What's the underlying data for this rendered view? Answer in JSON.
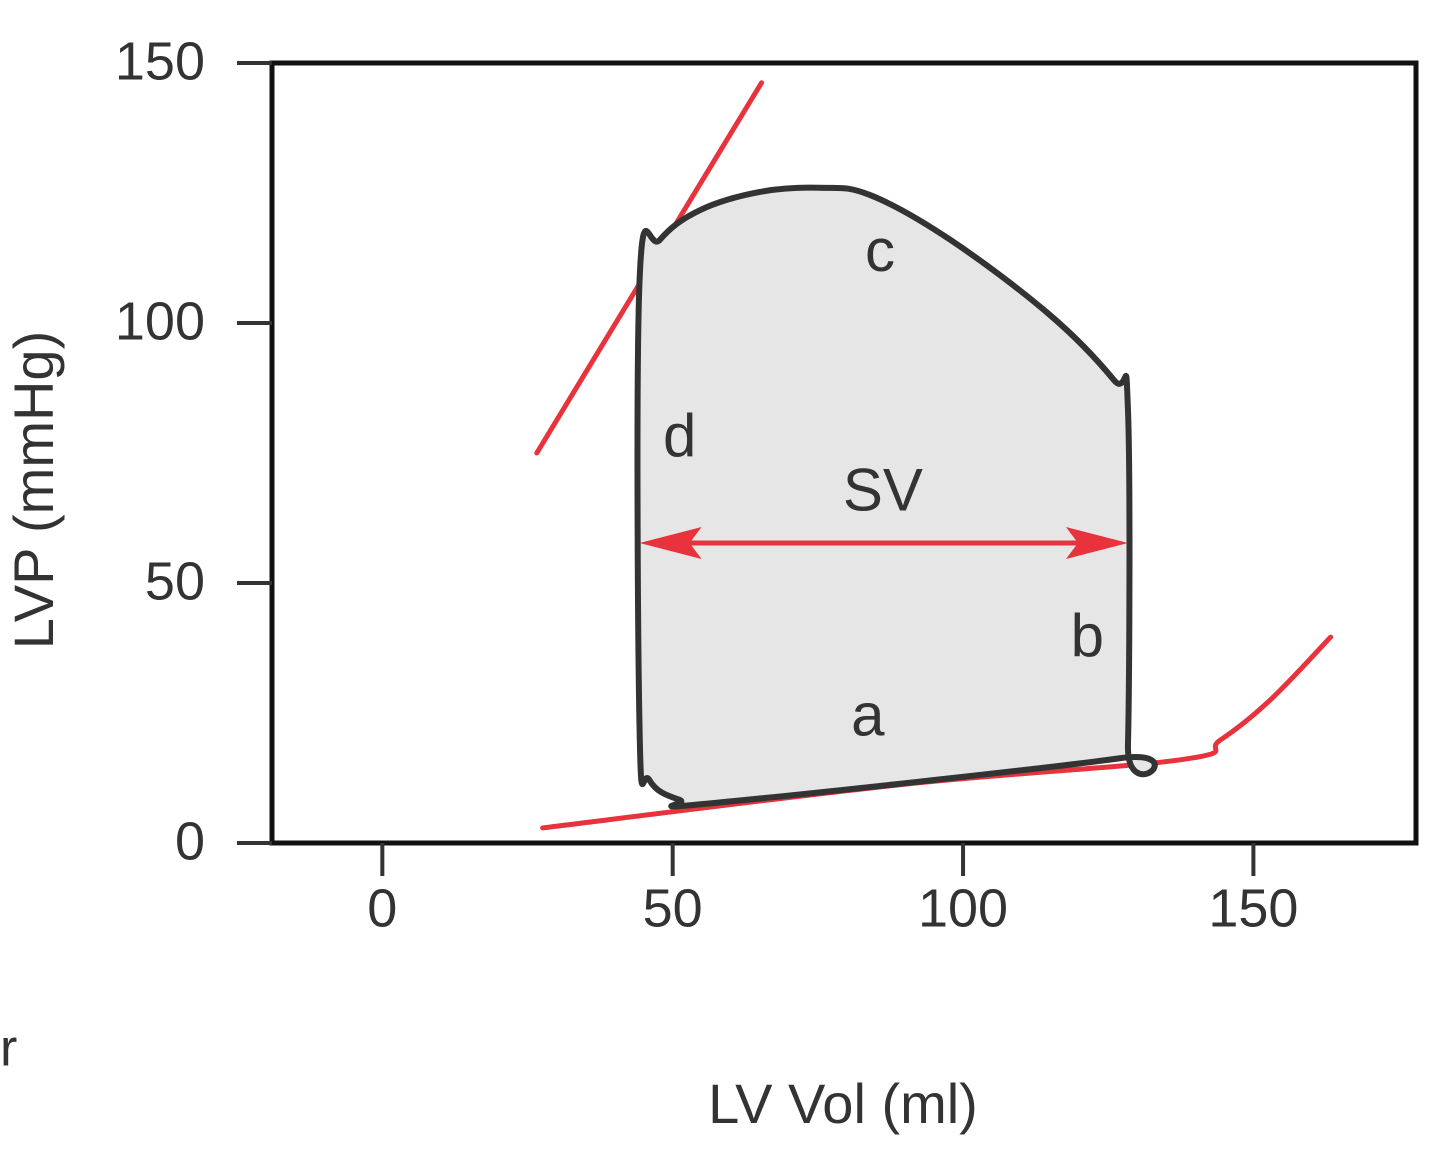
{
  "chart_data": {
    "type": "line",
    "xlabel": "LV Vol (ml)",
    "ylabel": "LVP (mmHg)",
    "xlim": [
      -19,
      178
    ],
    "ylim": [
      0,
      150
    ],
    "xticks": [
      0,
      50,
      100,
      150
    ],
    "yticks": [
      0,
      50,
      100,
      150
    ],
    "series": [
      {
        "color": "#e8323c",
        "x": [
          26.6,
          65.3
        ],
        "values": [
          75,
          146.2
        ]
      },
      {
        "color": "#e8323c",
        "x": [
          27.6,
          89.1,
          137.4,
          144.3,
          152.9,
          163.3
        ],
        "values": [
          2.9,
          11.2,
          16,
          19.8,
          27.5,
          39.6
        ]
      },
      {
        "color": "#333333",
        "fill": "#e6e6e6",
        "closed": true,
        "x": [
          57.2,
          127,
          128.4,
          128.4,
          126,
          115,
          97.8,
          84,
          75.3,
          65,
          54.7,
          47.8,
          44.3,
          44.3,
          46,
          51.2
        ],
        "values": [
          7.7,
          16.3,
          18.8,
          83.3,
          89,
          101.5,
          116,
          124.6,
          126,
          125.2,
          121.7,
          116,
          108.3,
          21.7,
          12.1,
          8.3
        ]
      }
    ],
    "arrows": [
      {
        "color": "#e8323c",
        "x": [
          44.3,
          128.4
        ],
        "values": [
          57.7,
          57.7
        ]
      }
    ],
    "annotations": [
      {
        "text": "a",
        "x": 83.6,
        "y": 23.7
      },
      {
        "text": "b",
        "x": 121.4,
        "y": 39
      },
      {
        "text": "c",
        "x": 85.7,
        "y": 113
      },
      {
        "text": "d",
        "x": 51.2,
        "y": 77.5
      },
      {
        "text": "SV",
        "x": 86.2,
        "y": 67
      }
    ],
    "fragment": "r"
  }
}
